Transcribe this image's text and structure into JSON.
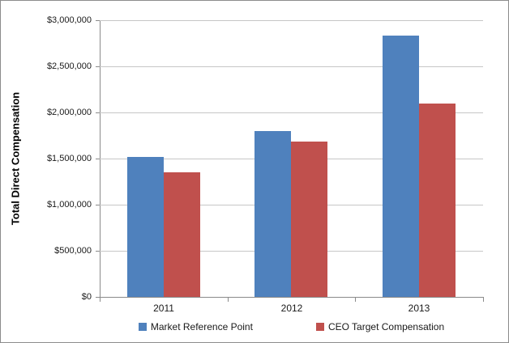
{
  "chart_data": {
    "type": "bar",
    "title": "",
    "xlabel": "",
    "ylabel": "Total Direct Compensation",
    "categories": [
      "2011",
      "2012",
      "2013"
    ],
    "series": [
      {
        "name": "Market Reference Point",
        "color": "#4F81BD",
        "values": [
          1520000,
          1800000,
          2830000
        ]
      },
      {
        "name": "CEO Target Compensation",
        "color": "#C0504D",
        "values": [
          1350000,
          1680000,
          2100000
        ]
      }
    ],
    "ylim": [
      0,
      3000000
    ],
    "ytick_interval": 500000,
    "ytick_values": [
      0,
      500000,
      1000000,
      1500000,
      2000000,
      2500000,
      3000000
    ],
    "ytick_labels": [
      "$0",
      "$500,000",
      "$1,000,000",
      "$1,500,000",
      "$2,000,000",
      "$2,500,000",
      "$3,000,000"
    ],
    "grid": true,
    "legend_position": "bottom",
    "colors": {
      "gridline": "#c6c6c6",
      "axis": "#8a8a8a",
      "chart_border": "#8c8c8c",
      "series_blue": "#4F81BD",
      "series_red": "#C0504D"
    }
  }
}
